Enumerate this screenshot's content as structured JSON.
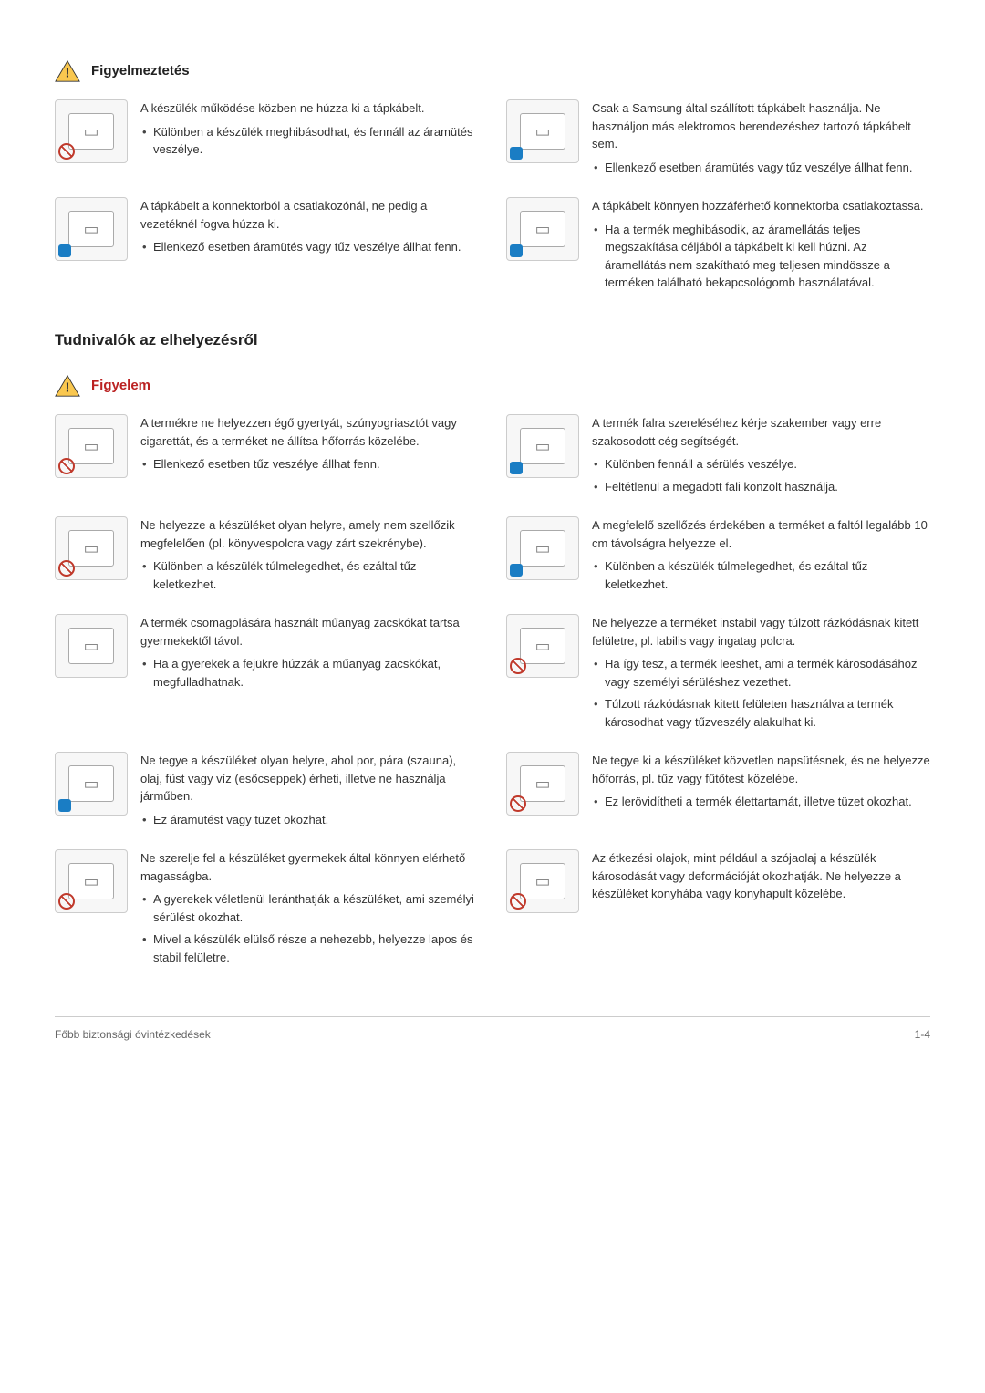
{
  "headers": {
    "figyelmeztetes": "Figyelmeztetés",
    "tudnivalok": "Tudnivalók az elhelyezésről",
    "figyelem": "Figyelem"
  },
  "warn_rows": [
    {
      "left": {
        "marker": "prohibit",
        "lead": "A készülék működése közben ne húzza ki a tápkábelt.",
        "bullets": [
          "Különben a készülék meghibásodhat, és fennáll az áramütés veszélye."
        ]
      },
      "right": {
        "marker": "info",
        "lead": "Csak a Samsung által szállított tápkábelt használja. Ne használjon más elektromos berendezéshez tartozó tápkábelt sem.",
        "bullets": [
          "Ellenkező esetben áramütés vagy tűz veszélye állhat fenn."
        ]
      }
    },
    {
      "left": {
        "marker": "info",
        "lead": "A tápkábelt a konnektorból a csatlakozónál, ne pedig a vezetéknél fogva húzza ki.",
        "bullets": [
          "Ellenkező esetben áramütés vagy tűz veszélye állhat fenn."
        ]
      },
      "right": {
        "marker": "info",
        "lead": "A tápkábelt könnyen hozzáférhető konnektorba csatlakoztassa.",
        "bullets": [
          "Ha a termék meghibásodik, az áramellátás teljes megszakítása céljából a tápkábelt ki kell húzni. Az áramellátás nem szakítható meg teljesen mindössze a terméken található bekapcsológomb használatával."
        ]
      }
    }
  ],
  "caution_rows": [
    {
      "left": {
        "marker": "prohibit",
        "lead": "A termékre ne helyezzen égő gyertyát, szúnyogriasztót vagy cigarettát, és a terméket ne állítsa hőforrás közelébe.",
        "bullets": [
          "Ellenkező esetben tűz veszélye állhat fenn."
        ]
      },
      "right": {
        "marker": "info",
        "lead": "A termék falra szereléséhez kérje szakember vagy erre szakosodott cég segítségét.",
        "bullets": [
          "Különben fennáll a sérülés veszélye.",
          "Feltétlenül a megadott fali konzolt használja."
        ]
      }
    },
    {
      "left": {
        "marker": "prohibit",
        "lead": "Ne helyezze a készüléket olyan helyre, amely nem szellőzik megfelelően (pl. könyvespolcra vagy zárt szekrénybe).",
        "bullets": [
          "Különben a készülék túlmelegedhet, és ezáltal tűz keletkezhet."
        ]
      },
      "right": {
        "marker": "info",
        "lead": "A megfelelő szellőzés érdekében a terméket a faltól legalább 10 cm távolságra helyezze el.",
        "bullets": [
          "Különben a készülék túlmelegedhet, és ezáltal tűz keletkezhet."
        ]
      }
    },
    {
      "left": {
        "marker": "",
        "lead": "A termék csomagolására használt műanyag zacskókat tartsa gyermekektől távol.",
        "bullets": [
          "Ha a gyerekek a fejükre húzzák a műanyag zacskókat, megfulladhatnak."
        ]
      },
      "right": {
        "marker": "prohibit",
        "lead": "Ne helyezze a terméket instabil vagy túlzott rázkódásnak kitett felületre, pl. labilis vagy ingatag polcra.",
        "bullets": [
          "Ha így tesz, a termék leeshet, ami a termék károsodásához vagy személyi sérüléshez vezethet.",
          "Túlzott rázkódásnak kitett felületen használva a termék károsodhat vagy tűzveszély alakulhat ki."
        ]
      }
    },
    {
      "left": {
        "marker": "info",
        "lead": "Ne tegye a készüléket olyan helyre, ahol por, pára (szauna), olaj, füst vagy víz (esőcseppek) érheti, illetve ne használja járműben.",
        "bullets": [
          "Ez áramütést vagy tüzet okozhat."
        ]
      },
      "right": {
        "marker": "prohibit",
        "lead": "Ne tegye ki a készüléket közvetlen napsütésnek, és ne helyezze hőforrás, pl. tűz vagy fűtőtest közelébe.",
        "bullets": [
          "Ez lerövidítheti a termék élettartamát, illetve tüzet okozhat."
        ]
      }
    },
    {
      "left": {
        "marker": "prohibit",
        "lead": "Ne szerelje fel a készüléket gyermekek által könnyen elérhető magasságba.",
        "bullets": [
          "A gyerekek véletlenül leránthatják a készüléket, ami személyi sérülést okozhat.",
          "Mivel a készülék elülső része a nehezebb, helyezze lapos és stabil felületre."
        ]
      },
      "right": {
        "marker": "prohibit",
        "lead": "Az étkezési olajok, mint például a szójaolaj a készülék károsodását vagy deformációját okozhatják. Ne helyezze a készüléket konyhába vagy konyhapult közelébe.",
        "bullets": []
      }
    }
  ],
  "footer": {
    "left": "Főbb biztonsági óvintézkedések",
    "right": "1-4"
  }
}
